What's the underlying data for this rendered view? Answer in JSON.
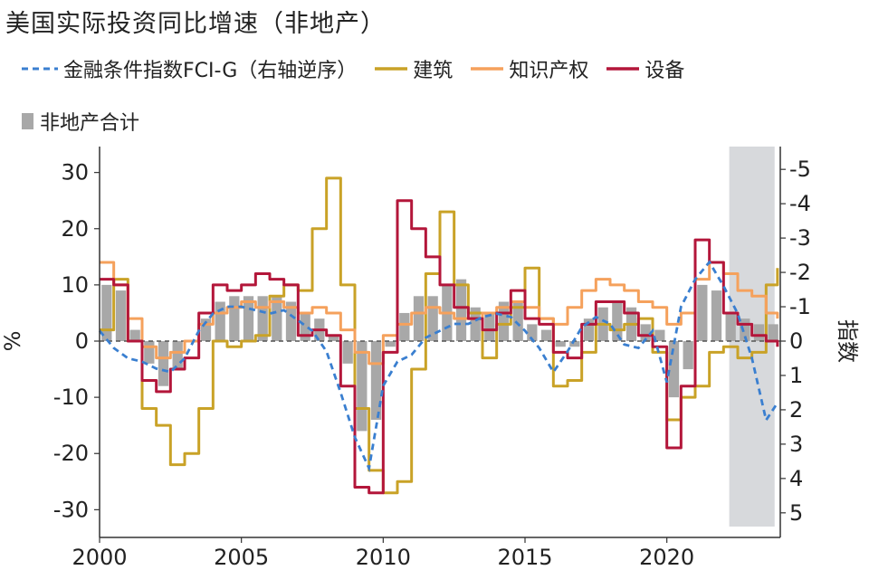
{
  "chart_data": {
    "type": "bar",
    "title": "美国实际投资同比增速（非地产）",
    "left_unit": "%",
    "right_unit": "指数",
    "left_ylim": [
      -33,
      33
    ],
    "left_yticks": [
      "30",
      "20",
      "10",
      "0",
      "-10",
      "-20",
      "-30"
    ],
    "right_ylim_reversed": [
      -5.4,
      5.4
    ],
    "right_yticks": [
      "-5",
      "-4",
      "-3",
      "-2",
      "-1",
      "0",
      "1",
      "2",
      "3",
      "4",
      "5"
    ],
    "x_ticks": [
      "2000",
      "2005",
      "2010",
      "2015",
      "2020"
    ],
    "xlim": [
      2000,
      2024
    ],
    "shade": {
      "from": 2022.2,
      "to": 2023.8
    },
    "colors": {
      "fci": "#3a7fd0",
      "construction": "#c9a227",
      "ip": "#f5a15c",
      "equipment": "#b3163a",
      "bars": "#a8a8a8"
    },
    "legend": {
      "fci": "金融条件指数FCI-G（右轴逆序）",
      "construction": "建筑",
      "ip": "知识产权",
      "equipment": "设备",
      "total": "非地产合计"
    },
    "series": [
      {
        "name": "非地产合计",
        "key": "total",
        "axis": "left",
        "kind": "bar",
        "x": [
          2000,
          2000.5,
          2001,
          2001.5,
          2002,
          2002.5,
          2003,
          2003.5,
          2004,
          2004.5,
          2005,
          2005.5,
          2006,
          2006.5,
          2007,
          2007.5,
          2008,
          2008.5,
          2009,
          2009.5,
          2010,
          2010.5,
          2011,
          2011.5,
          2012,
          2012.5,
          2013,
          2013.5,
          2014,
          2014.5,
          2015,
          2015.5,
          2016,
          2016.5,
          2017,
          2017.5,
          2018,
          2018.5,
          2019,
          2019.5,
          2020,
          2020.5,
          2021,
          2021.5,
          2022,
          2022.5,
          2023,
          2023.5
        ],
        "y": [
          10,
          9,
          2,
          -4,
          -8,
          -5,
          0,
          4,
          7,
          8,
          8,
          8,
          8,
          7,
          5,
          4,
          1,
          -4,
          -16,
          -14,
          -1,
          5,
          8,
          8,
          10,
          11,
          6,
          5,
          7,
          7,
          3,
          2,
          -1,
          -1,
          4,
          6,
          7,
          6,
          3,
          2,
          -10,
          -5,
          10,
          9,
          5,
          4,
          3,
          3
        ]
      },
      {
        "name": "建筑",
        "key": "construction",
        "axis": "left",
        "kind": "line",
        "x": [
          2000,
          2000.5,
          2001,
          2001.5,
          2002,
          2002.5,
          2003,
          2003.5,
          2004,
          2004.5,
          2005,
          2005.5,
          2006,
          2006.5,
          2007,
          2007.5,
          2008,
          2008.5,
          2009,
          2009.5,
          2010,
          2010.5,
          2011,
          2011.5,
          2012,
          2012.5,
          2013,
          2013.5,
          2014,
          2014.5,
          2015,
          2015.5,
          2016,
          2016.5,
          2017,
          2017.5,
          2018,
          2018.5,
          2019,
          2019.5,
          2020,
          2020.5,
          2021,
          2021.5,
          2022,
          2022.5,
          2023,
          2023.5,
          2023.9
        ],
        "y": [
          2,
          11,
          0,
          -12,
          -15,
          -22,
          -20,
          -12,
          0,
          -1,
          0,
          1,
          8,
          10,
          9,
          20,
          29,
          10,
          -12,
          -23,
          -27,
          -25,
          -5,
          12,
          23,
          10,
          5,
          -3,
          3,
          6,
          13,
          4,
          -8,
          -7,
          -2,
          3,
          2,
          3,
          4,
          -2,
          -14,
          -10,
          -8,
          -2,
          -1,
          -3,
          -2,
          10,
          13
        ]
      },
      {
        "name": "知识产权",
        "key": "ip",
        "axis": "left",
        "kind": "line",
        "x": [
          2000,
          2000.5,
          2001,
          2001.5,
          2002,
          2002.5,
          2003,
          2003.5,
          2004,
          2004.5,
          2005,
          2005.5,
          2006,
          2006.5,
          2007,
          2007.5,
          2008,
          2008.5,
          2009,
          2009.5,
          2010,
          2010.5,
          2011,
          2011.5,
          2012,
          2012.5,
          2013,
          2013.5,
          2014,
          2014.5,
          2015,
          2015.5,
          2016,
          2016.5,
          2017,
          2017.5,
          2018,
          2018.5,
          2019,
          2019.5,
          2020,
          2020.5,
          2021,
          2021.5,
          2022,
          2022.5,
          2023,
          2023.5,
          2023.9
        ],
        "y": [
          14,
          10,
          4,
          -1,
          -3,
          -2,
          0,
          3,
          5,
          6,
          7,
          6,
          7,
          6,
          5,
          6,
          5,
          2,
          -2,
          -4,
          1,
          3,
          5,
          6,
          5,
          4,
          4,
          5,
          6,
          7,
          6,
          4,
          3,
          6,
          9,
          11,
          10,
          9,
          7,
          6,
          3,
          5,
          11,
          14,
          12,
          9,
          8,
          5,
          4
        ]
      },
      {
        "name": "设备",
        "key": "equipment",
        "axis": "left",
        "kind": "line",
        "x": [
          2000,
          2000.5,
          2001,
          2001.5,
          2002,
          2002.5,
          2003,
          2003.5,
          2004,
          2004.5,
          2005,
          2005.5,
          2006,
          2006.5,
          2007,
          2007.5,
          2008,
          2008.5,
          2009,
          2009.5,
          2010,
          2010.5,
          2011,
          2011.5,
          2012,
          2012.5,
          2013,
          2013.5,
          2014,
          2014.5,
          2015,
          2015.5,
          2016,
          2016.5,
          2017,
          2017.5,
          2018,
          2018.5,
          2019,
          2019.5,
          2020,
          2020.5,
          2021,
          2021.5,
          2022,
          2022.5,
          2023,
          2023.5,
          2023.9
        ],
        "y": [
          11,
          10,
          0,
          -7,
          -9,
          -5,
          -3,
          5,
          10,
          9,
          10,
          12,
          11,
          10,
          1,
          2,
          1,
          -8,
          -26,
          -27,
          -2,
          25,
          20,
          15,
          10,
          6,
          4,
          2,
          5,
          9,
          4,
          3,
          -2,
          -3,
          3,
          7,
          7,
          5,
          1,
          -1,
          -19,
          -8,
          18,
          14,
          5,
          3,
          1,
          0,
          -1
        ]
      },
      {
        "name": "金融条件指数FCI-G（右轴逆序）",
        "key": "fci",
        "axis": "right",
        "kind": "dashed",
        "x": [
          2000,
          2000.5,
          2001,
          2001.5,
          2002,
          2002.5,
          2003,
          2003.5,
          2004,
          2004.5,
          2005,
          2005.5,
          2006,
          2006.5,
          2007,
          2007.5,
          2008,
          2008.5,
          2009,
          2009.5,
          2010,
          2010.5,
          2011,
          2011.5,
          2012,
          2012.5,
          2013,
          2013.5,
          2014,
          2014.5,
          2015,
          2015.5,
          2016,
          2016.5,
          2017,
          2017.5,
          2018,
          2018.5,
          2019,
          2019.5,
          2020,
          2020.5,
          2021,
          2021.5,
          2022,
          2022.5,
          2023,
          2023.5,
          2023.9
        ],
        "y": [
          -0.3,
          0.2,
          0.5,
          0.6,
          0.8,
          0.9,
          0.5,
          -0.3,
          -0.8,
          -1.0,
          -1.0,
          -0.9,
          -0.8,
          -0.9,
          -0.6,
          -0.3,
          0.3,
          1.5,
          2.8,
          3.7,
          1.3,
          0.6,
          0.4,
          -0.1,
          -0.3,
          -0.5,
          -0.5,
          -0.7,
          -0.8,
          -0.7,
          -0.3,
          0.2,
          0.9,
          0.3,
          -0.4,
          -0.7,
          -0.5,
          0.1,
          0.2,
          -0.3,
          1.2,
          -1.0,
          -1.8,
          -2.3,
          -1.6,
          -0.8,
          0.5,
          2.3,
          1.8
        ]
      }
    ]
  }
}
